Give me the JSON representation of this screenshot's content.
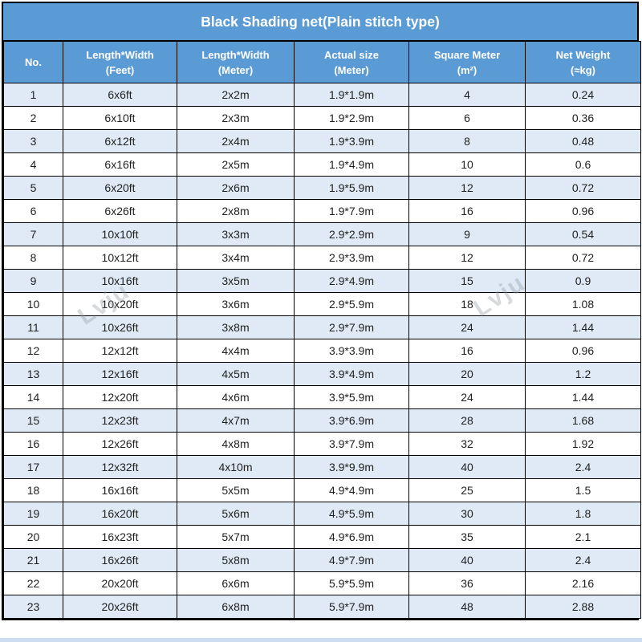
{
  "title": "Black Shading net(Plain stitch type)",
  "watermark": {
    "text": "Lvju"
  },
  "colors": {
    "header_blue": "#5b9bd5",
    "row_alt": "#dfeaf6",
    "border": "#000000",
    "bottom_strip": "#ccddf0"
  },
  "table": {
    "columns": [
      {
        "line1": "No.",
        "line2": ""
      },
      {
        "line1": "Length*Width",
        "line2": "(Feet)"
      },
      {
        "line1": "Length*Width",
        "line2": "(Meter)"
      },
      {
        "line1": "Actual size",
        "line2": "(Meter)"
      },
      {
        "line1": "Square Meter",
        "line2": "(m²)"
      },
      {
        "line1": "Net Weight",
        "line2": "(≈kg)"
      }
    ],
    "rows": [
      [
        "1",
        "6x6ft",
        "2x2m",
        "1.9*1.9m",
        "4",
        "0.24"
      ],
      [
        "2",
        "6x10ft",
        "2x3m",
        "1.9*2.9m",
        "6",
        "0.36"
      ],
      [
        "3",
        "6x12ft",
        "2x4m",
        "1.9*3.9m",
        "8",
        "0.48"
      ],
      [
        "4",
        "6x16ft",
        "2x5m",
        "1.9*4.9m",
        "10",
        "0.6"
      ],
      [
        "5",
        "6x20ft",
        "2x6m",
        "1.9*5.9m",
        "12",
        "0.72"
      ],
      [
        "6",
        "6x26ft",
        "2x8m",
        "1.9*7.9m",
        "16",
        "0.96"
      ],
      [
        "7",
        "10x10ft",
        "3x3m",
        "2.9*2.9m",
        "9",
        "0.54"
      ],
      [
        "8",
        "10x12ft",
        "3x4m",
        "2.9*3.9m",
        "12",
        "0.72"
      ],
      [
        "9",
        "10x16ft",
        "3x5m",
        "2.9*4.9m",
        "15",
        "0.9"
      ],
      [
        "10",
        "10x20ft",
        "3x6m",
        "2.9*5.9m",
        "18",
        "1.08"
      ],
      [
        "11",
        "10x26ft",
        "3x8m",
        "2.9*7.9m",
        "24",
        "1.44"
      ],
      [
        "12",
        "12x12ft",
        "4x4m",
        "3.9*3.9m",
        "16",
        "0.96"
      ],
      [
        "13",
        "12x16ft",
        "4x5m",
        "3.9*4.9m",
        "20",
        "1.2"
      ],
      [
        "14",
        "12x20ft",
        "4x6m",
        "3.9*5.9m",
        "24",
        "1.44"
      ],
      [
        "15",
        "12x23ft",
        "4x7m",
        "3.9*6.9m",
        "28",
        "1.68"
      ],
      [
        "16",
        "12x26ft",
        "4x8m",
        "3.9*7.9m",
        "32",
        "1.92"
      ],
      [
        "17",
        "12x32ft",
        "4x10m",
        "3.9*9.9m",
        "40",
        "2.4"
      ],
      [
        "18",
        "16x16ft",
        "5x5m",
        "4.9*4.9m",
        "25",
        "1.5"
      ],
      [
        "19",
        "16x20ft",
        "5x6m",
        "4.9*5.9m",
        "30",
        "1.8"
      ],
      [
        "20",
        "16x23ft",
        "5x7m",
        "4.9*6.9m",
        "35",
        "2.1"
      ],
      [
        "21",
        "16x26ft",
        "5x8m",
        "4.9*7.9m",
        "40",
        "2.4"
      ],
      [
        "22",
        "20x20ft",
        "6x6m",
        "5.9*5.9m",
        "36",
        "2.16"
      ],
      [
        "23",
        "20x26ft",
        "6x8m",
        "5.9*7.9m",
        "48",
        "2.88"
      ]
    ]
  }
}
